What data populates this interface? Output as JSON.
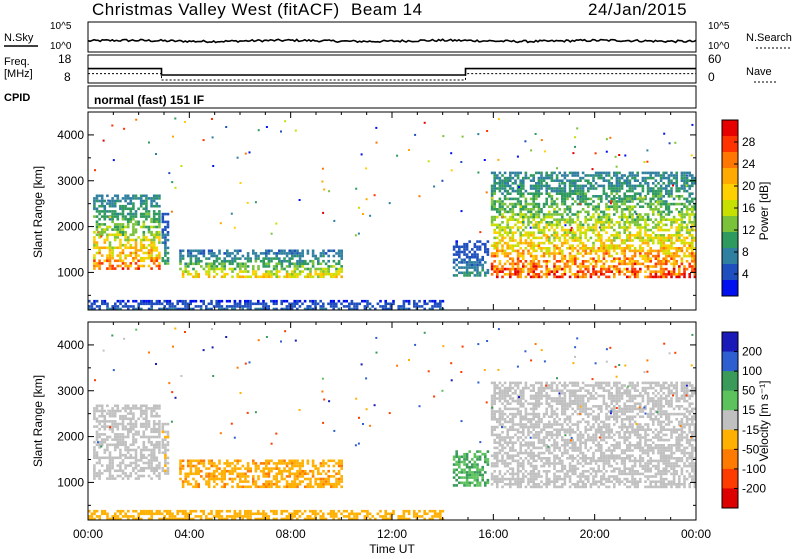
{
  "header": {
    "station": "Christmas Valley West (fitACF)",
    "beam": "Beam 14",
    "date": "24/Jan/2015"
  },
  "noise_panel": {
    "left_label": "N.Sky",
    "right_label": "N.Search",
    "left_ticks": [
      "10^5",
      "10^0"
    ],
    "right_ticks": [
      "10^5",
      "10^0"
    ]
  },
  "freq_panel": {
    "left_label_line1": "Freq.",
    "left_label_line2": "[MHz]",
    "right_label": "Nave",
    "left_ticks": [
      "18",
      "8"
    ],
    "right_ticks": [
      "60",
      "0"
    ],
    "freq_segments": [
      {
        "x0": 0.0,
        "x1": 2.9,
        "level": 14.2
      },
      {
        "x0": 2.9,
        "x1": 14.9,
        "level": 11.0
      },
      {
        "x0": 14.9,
        "x1": 24.0,
        "level": 14.2
      }
    ]
  },
  "cpid_panel": {
    "left_label": "CPID",
    "text": "normal (fast) 151 IF"
  },
  "power_legend": {
    "title": "Power [dB]",
    "ticks": [
      "28",
      "24",
      "20",
      "16",
      "12",
      "8",
      "4"
    ],
    "colors": [
      "#e60000",
      "#ff3300",
      "#ff7700",
      "#ffaa00",
      "#ffd000",
      "#c8e000",
      "#7ac23a",
      "#2f9a5e",
      "#2f7fa0",
      "#1f4fbf",
      "#0010ee"
    ]
  },
  "velocity_legend": {
    "title": "Velocity [m s⁻¹]",
    "ticks": [
      "200",
      "100",
      "50",
      "15",
      "-15",
      "-50",
      "-100",
      "-200"
    ],
    "colors": [
      "#1a1ab8",
      "#2e5fd0",
      "#3a9a5a",
      "#5cc35c",
      "#c0c0c0",
      "#ffb000",
      "#ff7a00",
      "#ff3c00",
      "#dd0000"
    ]
  },
  "axes": {
    "ylabel": "Slant Range [km]",
    "xlabel": "Time UT",
    "yticks": [
      "4000",
      "3000",
      "2000",
      "1000"
    ],
    "xticks": [
      "00:00",
      "04:00",
      "08:00",
      "12:00",
      "16:00",
      "20:00",
      "00:00"
    ]
  },
  "chart_data": [
    {
      "type": "heatmap",
      "title": "Power",
      "xlabel": "Time UT",
      "ylabel": "Slant Range [km]",
      "xlim": [
        0,
        24
      ],
      "ylim": [
        180,
        4500
      ],
      "colorbar": {
        "label": "Power [dB]",
        "range": [
          0,
          30
        ]
      },
      "echo_regions": [
        {
          "t0": 0.2,
          "t1": 2.8,
          "r0": 1100,
          "r1": 2700,
          "peak_power": 26
        },
        {
          "t0": 2.9,
          "t1": 3.2,
          "r0": 1200,
          "r1": 2300,
          "peak_power": 10
        },
        {
          "t0": 3.6,
          "t1": 10.0,
          "r0": 900,
          "r1": 1500,
          "peak_power": 20
        },
        {
          "t0": 14.4,
          "t1": 15.8,
          "r0": 950,
          "r1": 1700,
          "peak_power": 8
        },
        {
          "t0": 15.9,
          "t1": 24.0,
          "r0": 900,
          "r1": 3200,
          "peak_power": 28
        },
        {
          "t0": 0.0,
          "t1": 14.0,
          "r0": 180,
          "r1": 400,
          "peak_power": 6
        }
      ]
    },
    {
      "type": "heatmap",
      "title": "Velocity",
      "xlabel": "Time UT",
      "ylabel": "Slant Range [km]",
      "xlim": [
        0,
        24
      ],
      "ylim": [
        180,
        4500
      ],
      "colorbar": {
        "label": "Velocity [m s⁻¹]",
        "range": [
          -250,
          250
        ]
      },
      "echo_regions": [
        {
          "t0": 0.2,
          "t1": 2.8,
          "r0": 1100,
          "r1": 2700,
          "velocity": 0
        },
        {
          "t0": 2.9,
          "t1": 3.2,
          "r0": 1200,
          "r1": 2300,
          "velocity": -5
        },
        {
          "t0": 3.6,
          "t1": 10.0,
          "r0": 900,
          "r1": 1500,
          "velocity": -40
        },
        {
          "t0": 14.4,
          "t1": 15.8,
          "r0": 950,
          "r1": 1700,
          "velocity": 30
        },
        {
          "t0": 15.9,
          "t1": 24.0,
          "r0": 900,
          "r1": 3200,
          "velocity": 0
        },
        {
          "t0": 0.0,
          "t1": 14.0,
          "r0": 180,
          "r1": 400,
          "velocity": -35
        }
      ]
    }
  ]
}
